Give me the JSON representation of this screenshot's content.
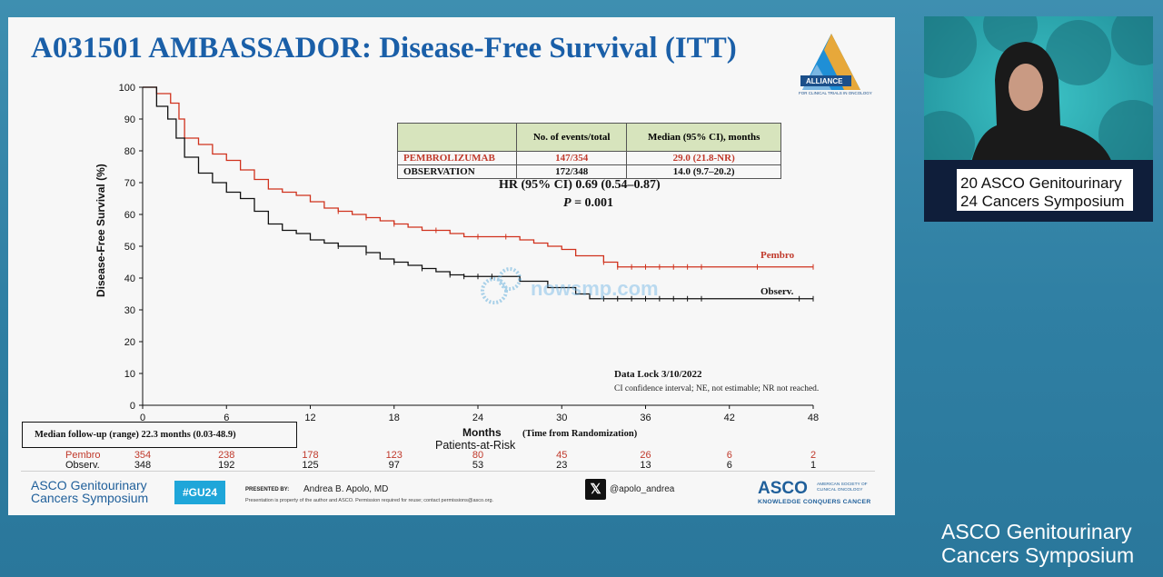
{
  "slide": {
    "title": "A031501 AMBASSADOR: Disease-Free Survival (ITT)",
    "alliance_logo_text": "ALLIANCE",
    "alliance_logo_subtext": "FOR CLINICAL TRIALS IN ONCOLOGY",
    "stats_table": {
      "headers": [
        "",
        "No. of events/total",
        "Median (95% CI), months"
      ],
      "rows": [
        {
          "arm": "PEMBROLIZUMAB",
          "events": "147/354",
          "median": "29.0 (21.8-NR)"
        },
        {
          "arm": "OBSERVATION",
          "events": "172/348",
          "median": "14.0 (9.7–20.2)"
        }
      ]
    },
    "hr_text": "HR (95% CI) 0.69 (0.54–0.87)",
    "p_label": "P",
    "p_value": " = 0.001",
    "data_lock": "Data Lock 3/10/2022",
    "ci_note": "CI confidence interval; NE, not estimable; NR not reached.",
    "median_followup": "Median follow-up (range)   22.3 months (0.03-48.9)",
    "patients_at_risk_label": "Patients-at-Risk",
    "risk_table": {
      "rows": [
        {
          "label": "Pembro",
          "values": [
            "354",
            "238",
            "178",
            "123",
            "80",
            "45",
            "26",
            "6",
            "2"
          ]
        },
        {
          "label": "Observ.",
          "values": [
            "348",
            "192",
            "125",
            "97",
            "53",
            "23",
            "13",
            "6",
            "1"
          ]
        }
      ]
    },
    "watermark": "nowsmp.com",
    "footer": {
      "logo_line1": "ASCO Genitourinary",
      "logo_line2": "Cancers Symposium",
      "hashtag": "#GU24",
      "presented_by": "PRESENTED BY:",
      "presenter": "Andrea B. Apolo, MD",
      "disclaimer": "Presentation is property of the author and ASCO. Permission required for reuse; contact permissions@asco.org.",
      "x_handle": "@apolo_andrea",
      "asco": "ASCO",
      "asco_society": "AMERICAN SOCIETY OF CLINICAL ONCOLOGY",
      "asco_tagline": "KNOWLEDGE CONQUERS CANCER"
    }
  },
  "speaker_video": {
    "podium_line1": "20 ASCO Genitourinary",
    "podium_line2": "24 Cancers Symposium"
  },
  "bottom_brand": {
    "line1": "ASCO Genitourinary",
    "line2": "Cancers Symposium"
  },
  "colors": {
    "pembro": "#d0321d",
    "observ": "#111111",
    "title_blue": "#1a5fa8",
    "table_header": "#d7e4bd",
    "background": "#3e8fb0"
  },
  "chart_data": {
    "type": "line",
    "title": "",
    "xlabel": "Months",
    "xlabel_note": "(Time from Randomization)",
    "ylabel": "Disease-Free Survival (%)",
    "xlim": [
      0,
      48
    ],
    "ylim": [
      0,
      100
    ],
    "xticks": [
      0,
      6,
      12,
      18,
      24,
      30,
      36,
      42,
      48
    ],
    "yticks": [
      0,
      10,
      20,
      30,
      40,
      50,
      60,
      70,
      80,
      90,
      100
    ],
    "series": [
      {
        "name": "Pembro",
        "color": "#d0321d",
        "points": [
          [
            0,
            100
          ],
          [
            1,
            98
          ],
          [
            2,
            95
          ],
          [
            2.6,
            90
          ],
          [
            3,
            84
          ],
          [
            4,
            82
          ],
          [
            5,
            79
          ],
          [
            6,
            77
          ],
          [
            7,
            74
          ],
          [
            8,
            71
          ],
          [
            9,
            68
          ],
          [
            10,
            67
          ],
          [
            11,
            66
          ],
          [
            12,
            64
          ],
          [
            13,
            62
          ],
          [
            14,
            61
          ],
          [
            15,
            60
          ],
          [
            16,
            59
          ],
          [
            17,
            58
          ],
          [
            18,
            57
          ],
          [
            19,
            56
          ],
          [
            20,
            55
          ],
          [
            21,
            55
          ],
          [
            22,
            54
          ],
          [
            23,
            53
          ],
          [
            24,
            53
          ],
          [
            26,
            53
          ],
          [
            27,
            52
          ],
          [
            28,
            51
          ],
          [
            29,
            50
          ],
          [
            30,
            49
          ],
          [
            31,
            47
          ],
          [
            33,
            45
          ],
          [
            34,
            43.5
          ],
          [
            36,
            43.5
          ],
          [
            40,
            43.5
          ],
          [
            48,
            43.5
          ]
        ],
        "censor_x": [
          14,
          16,
          18,
          21,
          24,
          26,
          33,
          34,
          35,
          36,
          37,
          38,
          39,
          40,
          44,
          48
        ]
      },
      {
        "name": "Observ.",
        "color": "#111111",
        "points": [
          [
            0,
            100
          ],
          [
            1,
            94
          ],
          [
            1.8,
            90
          ],
          [
            2.4,
            84
          ],
          [
            3,
            78
          ],
          [
            4,
            73
          ],
          [
            5,
            70
          ],
          [
            6,
            67
          ],
          [
            7,
            65
          ],
          [
            8,
            61
          ],
          [
            9,
            57
          ],
          [
            10,
            55
          ],
          [
            11,
            54
          ],
          [
            12,
            52
          ],
          [
            13,
            51
          ],
          [
            14,
            50
          ],
          [
            15,
            50
          ],
          [
            16,
            48
          ],
          [
            17,
            46
          ],
          [
            18,
            45
          ],
          [
            19,
            44
          ],
          [
            20,
            43
          ],
          [
            21,
            42
          ],
          [
            22,
            41
          ],
          [
            23,
            40.5
          ],
          [
            24,
            40.5
          ],
          [
            26,
            40.5
          ],
          [
            27,
            39
          ],
          [
            29,
            37
          ],
          [
            31,
            35
          ],
          [
            32,
            33.5
          ],
          [
            36,
            33.5
          ],
          [
            40,
            33.5
          ],
          [
            48,
            33.5
          ]
        ],
        "censor_x": [
          14,
          16,
          18,
          20,
          22,
          23,
          24,
          25,
          33,
          34,
          35,
          36,
          37,
          38,
          39,
          40,
          47,
          48
        ]
      }
    ]
  }
}
